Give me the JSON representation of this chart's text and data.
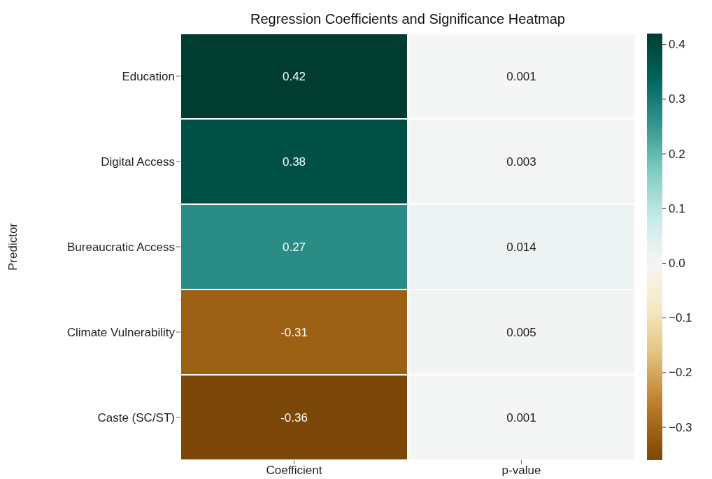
{
  "chart_data": {
    "type": "heatmap",
    "title": "Regression Coefficients and Significance Heatmap",
    "ylabel": "Predictor",
    "categories": [
      "Coefficient",
      "p-value"
    ],
    "y_categories": [
      "Education",
      "Digital Access",
      "Bureaucratic Access",
      "Climate Vulnerability",
      "Caste (SC/ST)"
    ],
    "cells": [
      [
        0.42,
        0.001
      ],
      [
        0.38,
        0.003
      ],
      [
        0.27,
        0.014
      ],
      [
        -0.31,
        0.005
      ],
      [
        -0.36,
        0.001
      ]
    ],
    "clim": [
      -0.36,
      0.42
    ],
    "cticks": [
      {
        "value": -0.3,
        "label": "−0.3"
      },
      {
        "value": -0.2,
        "label": "−0.2"
      },
      {
        "value": -0.1,
        "label": "−0.1"
      },
      {
        "value": 0,
        "label": "0.0"
      },
      {
        "value": 0.1,
        "label": "0.1"
      },
      {
        "value": 0.2,
        "label": "0.2"
      },
      {
        "value": 0.3,
        "label": "0.3"
      },
      {
        "value": 0.4,
        "label": "0.4"
      }
    ],
    "data_labels": true
  }
}
